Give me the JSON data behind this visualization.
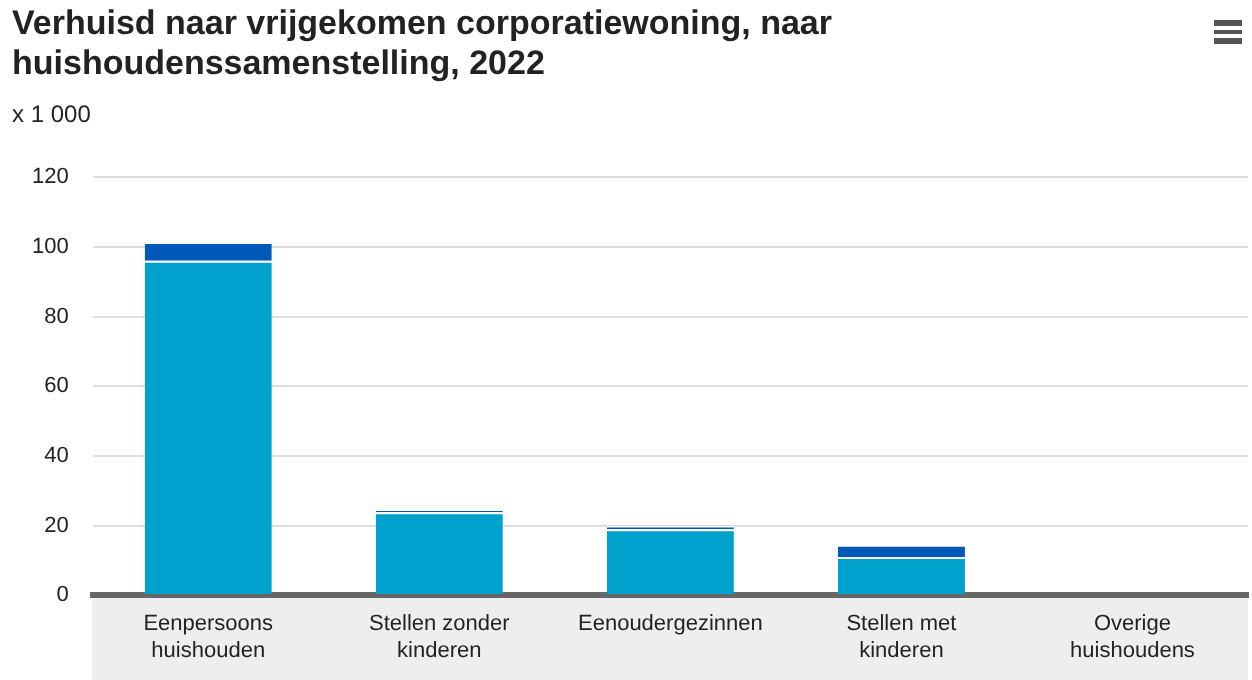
{
  "chart_data": {
    "type": "bar",
    "title": "Verhuisd naar vrijgekomen corporatiewoning, naar huishoudenssamenstelling, 2022",
    "ylabel": "x 1 000",
    "categories": [
      "Eenpersoons huishouden",
      "Stellen zonder kinderen",
      "Eenoudergezinnen",
      "Stellen met kinderen",
      "Overige huishoudens"
    ],
    "stacked": true,
    "series": [
      {
        "color": "#00a1cd",
        "values": [
          96,
          23.8,
          18.9,
          11,
          0
        ]
      },
      {
        "color": "#0058b8",
        "values": [
          5.4,
          0.7,
          1,
          3.5,
          0
        ]
      }
    ],
    "ylim": [
      0,
      120
    ],
    "yticks": [
      0,
      20,
      40,
      60,
      80,
      100,
      120
    ],
    "grid": "y",
    "legend": false
  }
}
